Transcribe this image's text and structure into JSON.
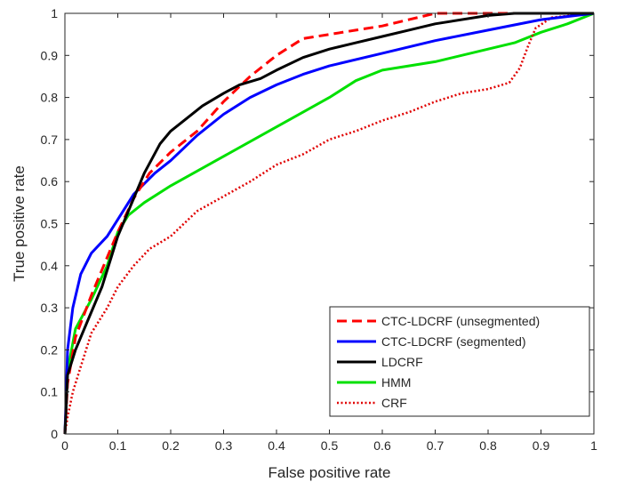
{
  "chart_data": {
    "type": "line",
    "xlabel": "False positive rate",
    "ylabel": "True positive rate",
    "xlim": [
      0,
      1
    ],
    "ylim": [
      0,
      1
    ],
    "x_ticks": [
      "0",
      "0.1",
      "0.2",
      "0.3",
      "0.4",
      "0.5",
      "0.6",
      "0.7",
      "0.8",
      "0.9",
      "1"
    ],
    "y_ticks": [
      "0",
      "0.1",
      "0.2",
      "0.3",
      "0.4",
      "0.5",
      "0.6",
      "0.7",
      "0.8",
      "0.9",
      "1"
    ],
    "grid": false,
    "legend_position": "bottom-right",
    "series": [
      {
        "name": "CTC-LDCRF (unsegmented)",
        "color": "#ff0000",
        "style": "dashed",
        "points": [
          [
            0,
            0
          ],
          [
            0.005,
            0.12
          ],
          [
            0.02,
            0.23
          ],
          [
            0.05,
            0.33
          ],
          [
            0.08,
            0.42
          ],
          [
            0.1,
            0.48
          ],
          [
            0.13,
            0.56
          ],
          [
            0.16,
            0.62
          ],
          [
            0.2,
            0.67
          ],
          [
            0.25,
            0.72
          ],
          [
            0.3,
            0.79
          ],
          [
            0.35,
            0.85
          ],
          [
            0.4,
            0.9
          ],
          [
            0.45,
            0.94
          ],
          [
            0.5,
            0.95
          ],
          [
            0.55,
            0.96
          ],
          [
            0.6,
            0.97
          ],
          [
            0.65,
            0.985
          ],
          [
            0.7,
            1.0
          ],
          [
            0.8,
            1.0
          ],
          [
            0.9,
            1.0
          ],
          [
            1.0,
            1.0
          ]
        ]
      },
      {
        "name": "CTC-LDCRF (segmented)",
        "color": "#0000ff",
        "style": "solid",
        "points": [
          [
            0,
            0
          ],
          [
            0.005,
            0.2
          ],
          [
            0.015,
            0.3
          ],
          [
            0.03,
            0.38
          ],
          [
            0.05,
            0.43
          ],
          [
            0.08,
            0.47
          ],
          [
            0.1,
            0.51
          ],
          [
            0.13,
            0.57
          ],
          [
            0.17,
            0.62
          ],
          [
            0.2,
            0.65
          ],
          [
            0.25,
            0.71
          ],
          [
            0.3,
            0.76
          ],
          [
            0.35,
            0.8
          ],
          [
            0.4,
            0.83
          ],
          [
            0.45,
            0.855
          ],
          [
            0.5,
            0.875
          ],
          [
            0.6,
            0.905
          ],
          [
            0.7,
            0.935
          ],
          [
            0.8,
            0.96
          ],
          [
            0.9,
            0.985
          ],
          [
            1.0,
            1.0
          ]
        ]
      },
      {
        "name": "LDCRF",
        "color": "#000000",
        "style": "solid",
        "points": [
          [
            0,
            0
          ],
          [
            0.005,
            0.14
          ],
          [
            0.02,
            0.2
          ],
          [
            0.04,
            0.26
          ],
          [
            0.07,
            0.35
          ],
          [
            0.1,
            0.47
          ],
          [
            0.13,
            0.56
          ],
          [
            0.15,
            0.62
          ],
          [
            0.18,
            0.69
          ],
          [
            0.2,
            0.72
          ],
          [
            0.23,
            0.75
          ],
          [
            0.26,
            0.78
          ],
          [
            0.3,
            0.81
          ],
          [
            0.33,
            0.83
          ],
          [
            0.37,
            0.845
          ],
          [
            0.4,
            0.865
          ],
          [
            0.45,
            0.895
          ],
          [
            0.5,
            0.915
          ],
          [
            0.55,
            0.93
          ],
          [
            0.6,
            0.945
          ],
          [
            0.65,
            0.96
          ],
          [
            0.7,
            0.975
          ],
          [
            0.8,
            0.995
          ],
          [
            0.85,
            1.0
          ],
          [
            1.0,
            1.0
          ]
        ]
      },
      {
        "name": "HMM",
        "color": "#00e000",
        "style": "solid",
        "points": [
          [
            0,
            0
          ],
          [
            0.005,
            0.15
          ],
          [
            0.02,
            0.25
          ],
          [
            0.05,
            0.32
          ],
          [
            0.08,
            0.4
          ],
          [
            0.1,
            0.48
          ],
          [
            0.12,
            0.52
          ],
          [
            0.15,
            0.55
          ],
          [
            0.2,
            0.59
          ],
          [
            0.3,
            0.66
          ],
          [
            0.4,
            0.73
          ],
          [
            0.5,
            0.8
          ],
          [
            0.55,
            0.84
          ],
          [
            0.6,
            0.865
          ],
          [
            0.7,
            0.885
          ],
          [
            0.8,
            0.915
          ],
          [
            0.85,
            0.93
          ],
          [
            0.9,
            0.955
          ],
          [
            0.95,
            0.975
          ],
          [
            1.0,
            1.0
          ]
        ]
      },
      {
        "name": "CRF",
        "color": "#e00000",
        "style": "dotted",
        "points": [
          [
            0,
            0
          ],
          [
            0.005,
            0.04
          ],
          [
            0.015,
            0.1
          ],
          [
            0.03,
            0.16
          ],
          [
            0.05,
            0.24
          ],
          [
            0.08,
            0.3
          ],
          [
            0.1,
            0.35
          ],
          [
            0.13,
            0.4
          ],
          [
            0.16,
            0.44
          ],
          [
            0.2,
            0.47
          ],
          [
            0.25,
            0.53
          ],
          [
            0.3,
            0.565
          ],
          [
            0.35,
            0.6
          ],
          [
            0.4,
            0.64
          ],
          [
            0.45,
            0.665
          ],
          [
            0.5,
            0.7
          ],
          [
            0.55,
            0.72
          ],
          [
            0.6,
            0.745
          ],
          [
            0.65,
            0.765
          ],
          [
            0.7,
            0.79
          ],
          [
            0.75,
            0.81
          ],
          [
            0.8,
            0.82
          ],
          [
            0.84,
            0.835
          ],
          [
            0.86,
            0.87
          ],
          [
            0.875,
            0.92
          ],
          [
            0.89,
            0.965
          ],
          [
            0.92,
            0.99
          ],
          [
            1.0,
            1.0
          ]
        ]
      }
    ]
  }
}
